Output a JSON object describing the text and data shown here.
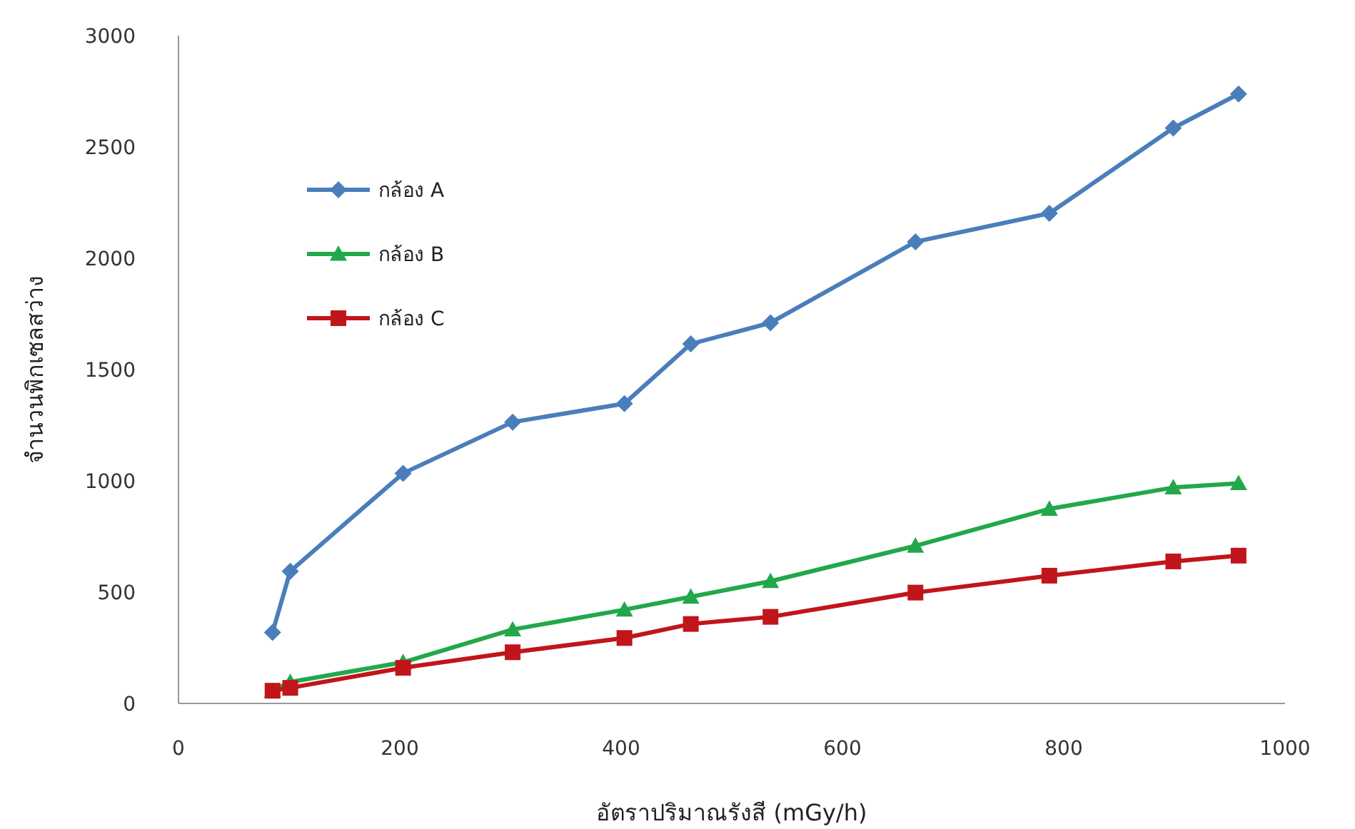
{
  "chart_data": {
    "type": "line",
    "xlabel": "อัตราปริมาณรังสี (mGy/h)",
    "ylabel": "จำนวนพิกเซลสว่าง",
    "xlim": [
      0,
      1000
    ],
    "xticks": [
      0,
      200,
      400,
      600,
      800,
      1000
    ],
    "ylim": [
      0,
      3000
    ],
    "yticks": [
      0,
      500,
      1000,
      1500,
      2000,
      2500,
      3000
    ],
    "grid": false,
    "legend": "top left",
    "x": [
      85,
      101,
      203,
      302,
      403,
      463,
      535,
      666,
      787,
      899,
      958
    ],
    "series": [
      {
        "name": "กล้อง A",
        "color": "#4a7ebb",
        "marker": "diamond",
        "values": [
          319,
          594,
          1034,
          1264,
          1347,
          1615,
          1710,
          2074,
          2202,
          2585,
          2738
        ]
      },
      {
        "name": "กล้อง B",
        "color": "#22a84a",
        "marker": "triangle",
        "values": [
          57,
          96,
          185,
          332,
          421,
          479,
          549,
          708,
          874,
          970,
          989
        ]
      },
      {
        "name": "กล้อง C",
        "color": "#c0161b",
        "marker": "square",
        "values": [
          57,
          70,
          160,
          230,
          294,
          357,
          389,
          498,
          574,
          638,
          664
        ]
      }
    ]
  }
}
